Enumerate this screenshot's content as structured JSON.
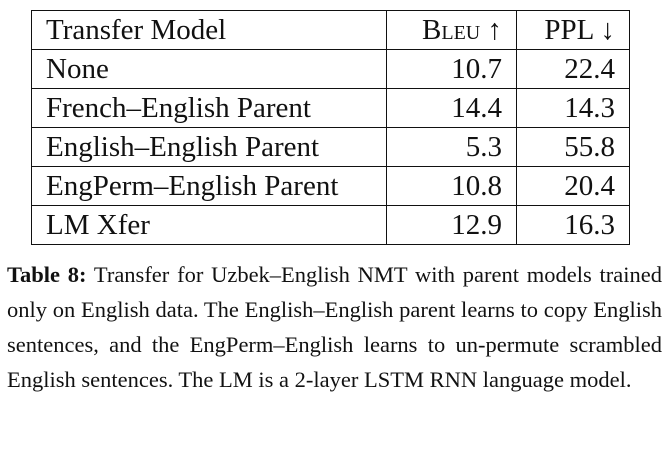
{
  "table": {
    "headers": [
      "Transfer Model",
      "Bleu ↑",
      "PPL ↓"
    ],
    "rows": [
      {
        "model": "None",
        "bleu": "10.7",
        "ppl": "22.4",
        "bold": false
      },
      {
        "model": "French–English Parent",
        "bleu": "14.4",
        "ppl": "14.3",
        "bold": true
      },
      {
        "model": "English–English Parent",
        "bleu": "5.3",
        "ppl": "55.8",
        "bold": false
      },
      {
        "model": "EngPerm–English Parent",
        "bleu": "10.8",
        "ppl": "20.4",
        "bold": false
      },
      {
        "model": "LM Xfer",
        "bleu": "12.9",
        "ppl": "16.3",
        "bold": false
      }
    ]
  },
  "caption": {
    "label": "Table 8:",
    "text": "Transfer for Uzbek–English NMT with parent models trained only on English data. The English–English parent learns to copy English sentences, and the EngPerm–English learns to un-permute scrambled English sentences. The LM is a 2-layer LSTM RNN language model."
  }
}
